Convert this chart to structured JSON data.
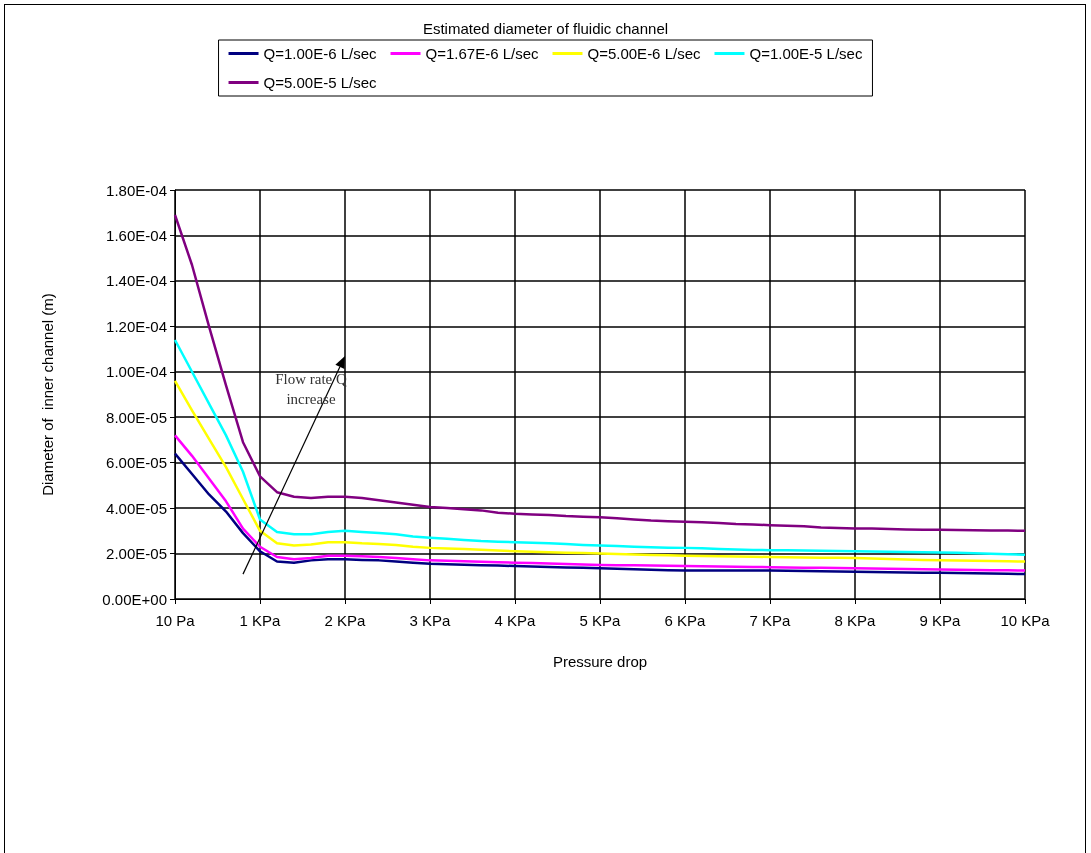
{
  "chart_data": {
    "type": "line",
    "title": "Estimated diameter of fluidic channel",
    "xlabel": "Pressure drop",
    "ylabel": "Diameter of  inner channel (m)",
    "categories": [
      "10 Pa",
      null,
      null,
      null,
      null,
      "1 KPa",
      null,
      null,
      null,
      null,
      "2 KPa",
      null,
      null,
      null,
      null,
      "3 KPa",
      null,
      null,
      null,
      null,
      "4 KPa",
      null,
      null,
      null,
      null,
      "5 KPa",
      null,
      null,
      null,
      null,
      "6 KPa",
      null,
      null,
      null,
      null,
      "7 KPa",
      null,
      null,
      null,
      null,
      "8 KPa",
      null,
      null,
      null,
      null,
      "9 KPa",
      null,
      null,
      null,
      null,
      "10 KPa"
    ],
    "series": [
      {
        "name": "Q=1.00E-6 L/sec",
        "color": "#000080",
        "values": [
          6.4e-05,
          5.5e-05,
          4.6e-05,
          3.85e-05,
          2.9e-05,
          2.1e-05,
          1.65e-05,
          1.6e-05,
          1.7e-05,
          1.75e-05,
          1.75e-05,
          1.72e-05,
          1.7e-05,
          1.65e-05,
          1.6e-05,
          1.55e-05,
          1.53e-05,
          1.51e-05,
          1.49e-05,
          1.47e-05,
          1.45e-05,
          1.43e-05,
          1.41e-05,
          1.39e-05,
          1.37e-05,
          1.35e-05,
          1.33e-05,
          1.31e-05,
          1.29e-05,
          1.27e-05,
          1.25e-05,
          1.25e-05,
          1.25e-05,
          1.25e-05,
          1.25e-05,
          1.25e-05,
          1.24e-05,
          1.23e-05,
          1.22e-05,
          1.21e-05,
          1.2e-05,
          1.19e-05,
          1.18e-05,
          1.17e-05,
          1.16e-05,
          1.15e-05,
          1.14e-05,
          1.13e-05,
          1.12e-05,
          1.11e-05,
          1.1e-05
        ]
      },
      {
        "name": "Q=1.67E-6 L/sec",
        "color": "#ff00ff",
        "values": [
          7.2e-05,
          6.3e-05,
          5.3e-05,
          4.3e-05,
          3.1e-05,
          2.3e-05,
          1.85e-05,
          1.75e-05,
          1.8e-05,
          1.9e-05,
          1.9e-05,
          1.88e-05,
          1.85e-05,
          1.8e-05,
          1.75e-05,
          1.7e-05,
          1.68e-05,
          1.66e-05,
          1.64e-05,
          1.62e-05,
          1.6e-05,
          1.58e-05,
          1.56e-05,
          1.54e-05,
          1.52e-05,
          1.5e-05,
          1.49e-05,
          1.48e-05,
          1.47e-05,
          1.46e-05,
          1.45e-05,
          1.44e-05,
          1.43e-05,
          1.42e-05,
          1.41e-05,
          1.4e-05,
          1.39e-05,
          1.38e-05,
          1.37e-05,
          1.36e-05,
          1.35e-05,
          1.34e-05,
          1.33e-05,
          1.32e-05,
          1.31e-05,
          1.3e-05,
          1.29e-05,
          1.28e-05,
          1.27e-05,
          1.26e-05,
          1.25e-05
        ]
      },
      {
        "name": "Q=5.00E-6 L/sec",
        "color": "#ffff00",
        "values": [
          9.6e-05,
          8.3e-05,
          7.05e-05,
          5.8e-05,
          4.4e-05,
          3e-05,
          2.45e-05,
          2.35e-05,
          2.4e-05,
          2.5e-05,
          2.5e-05,
          2.45e-05,
          2.42e-05,
          2.38e-05,
          2.3e-05,
          2.25e-05,
          2.22e-05,
          2.2e-05,
          2.17e-05,
          2.13e-05,
          2.1e-05,
          2.08e-05,
          2.06e-05,
          2.04e-05,
          2.02e-05,
          2e-05,
          1.98e-05,
          1.96e-05,
          1.94e-05,
          1.92e-05,
          1.9e-05,
          1.89e-05,
          1.88e-05,
          1.87e-05,
          1.86e-05,
          1.85e-05,
          1.84e-05,
          1.83e-05,
          1.82e-05,
          1.81e-05,
          1.8e-05,
          1.78e-05,
          1.76e-05,
          1.74e-05,
          1.72e-05,
          1.7e-05,
          1.69e-05,
          1.68e-05,
          1.67e-05,
          1.66e-05,
          1.65e-05
        ]
      },
      {
        "name": "Q=1.00E-5 L/sec",
        "color": "#00ffff",
        "values": [
          0.000114,
          0.0001,
          8.6e-05,
          7.2e-05,
          5.6e-05,
          3.5e-05,
          2.95e-05,
          2.85e-05,
          2.85e-05,
          2.95e-05,
          3e-05,
          2.95e-05,
          2.9e-05,
          2.85e-05,
          2.75e-05,
          2.7e-05,
          2.65e-05,
          2.6e-05,
          2.55e-05,
          2.52e-05,
          2.5e-05,
          2.48e-05,
          2.45e-05,
          2.42e-05,
          2.38e-05,
          2.35e-05,
          2.33e-05,
          2.3e-05,
          2.28e-05,
          2.26e-05,
          2.25e-05,
          2.23e-05,
          2.2e-05,
          2.18e-05,
          2.16e-05,
          2.15e-05,
          2.14e-05,
          2.13e-05,
          2.12e-05,
          2.11e-05,
          2.1e-05,
          2.09e-05,
          2.08e-05,
          2.07e-05,
          2.06e-05,
          2.05e-05,
          2.03e-05,
          2.01e-05,
          1.99e-05,
          1.97e-05,
          1.95e-05
        ]
      },
      {
        "name": "Q=5.00E-5 L/sec",
        "color": "#800080",
        "values": [
          0.000169,
          0.000147,
          0.00012,
          9.4e-05,
          6.9e-05,
          5.4e-05,
          4.7e-05,
          4.5e-05,
          4.45e-05,
          4.5e-05,
          4.5e-05,
          4.45e-05,
          4.35e-05,
          4.25e-05,
          4.15e-05,
          4.05e-05,
          4e-05,
          3.95e-05,
          3.9e-05,
          3.8e-05,
          3.75e-05,
          3.72e-05,
          3.7e-05,
          3.65e-05,
          3.62e-05,
          3.6e-05,
          3.55e-05,
          3.5e-05,
          3.45e-05,
          3.42e-05,
          3.4e-05,
          3.38e-05,
          3.35e-05,
          3.3e-05,
          3.28e-05,
          3.25e-05,
          3.22e-05,
          3.2e-05,
          3.15e-05,
          3.12e-05,
          3.1e-05,
          3.1e-05,
          3.08e-05,
          3.06e-05,
          3.05e-05,
          3.05e-05,
          3.04e-05,
          3.03e-05,
          3.02e-05,
          3.01e-05,
          3e-05
        ]
      }
    ],
    "ylim": [
      0,
      0.00018
    ],
    "yticks": [
      {
        "value": 0,
        "label": "0.00E+00"
      },
      {
        "value": 2e-05,
        "label": "2.00E-05"
      },
      {
        "value": 4e-05,
        "label": "4.00E-05"
      },
      {
        "value": 6e-05,
        "label": "6.00E-05"
      },
      {
        "value": 8e-05,
        "label": "8.00E-05"
      },
      {
        "value": 0.0001,
        "label": "1.00E-04"
      },
      {
        "value": 0.00012,
        "label": "1.20E-04"
      },
      {
        "value": 0.00014,
        "label": "1.40E-04"
      },
      {
        "value": 0.00016,
        "label": "1.60E-04"
      },
      {
        "value": 0.00018,
        "label": "1.80E-04"
      }
    ],
    "grid": true,
    "legend": "top",
    "marker": "none",
    "line_style": "solid",
    "annotations": [
      "Flow rate Q increase"
    ]
  }
}
